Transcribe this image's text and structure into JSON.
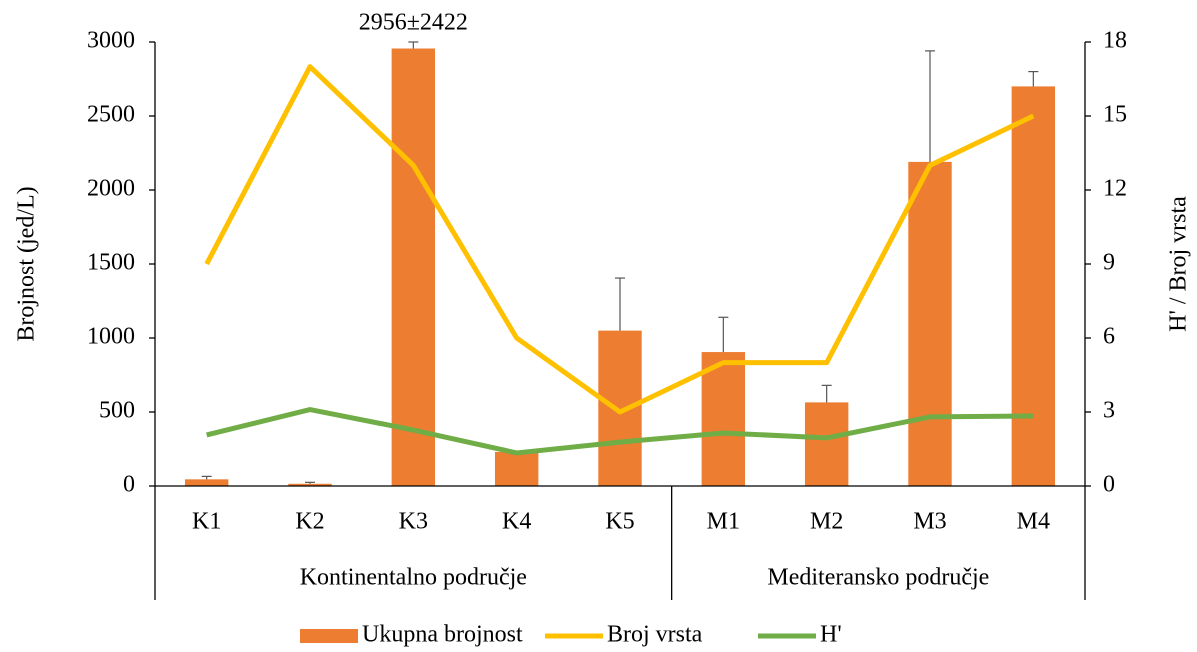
{
  "chart_data": {
    "type": "bar-line",
    "categories": [
      "K1",
      "K2",
      "K3",
      "K4",
      "K5",
      "M1",
      "M2",
      "M3",
      "M4"
    ],
    "groups": [
      {
        "name": "Kontinentalno područje",
        "count": 5
      },
      {
        "name": "Mediteransko područje",
        "count": 4
      }
    ],
    "series": [
      {
        "name": "Ukupna brojnost",
        "type": "bar",
        "color": "#ed7d31",
        "values": [
          45,
          15,
          2956,
          230,
          1050,
          905,
          565,
          2190,
          2700
        ],
        "errors": [
          20,
          10,
          2422,
          null,
          355,
          235,
          115,
          750,
          100
        ]
      },
      {
        "name": "Broj vrsta",
        "type": "line",
        "axis": "y2",
        "color": "#ffc000",
        "values": [
          9,
          17,
          13,
          6,
          3,
          5,
          5,
          13,
          15
        ]
      },
      {
        "name": "H'",
        "type": "line",
        "axis": "y2",
        "color": "#70ad47",
        "values": [
          2.07,
          3.1,
          2.27,
          1.34,
          1.78,
          2.15,
          1.95,
          2.8,
          2.84
        ]
      }
    ],
    "annotation": "2956±2422",
    "ylabel": "Brojnost (jed/L)",
    "y2label": "H' / Broj vrsta",
    "ylim": [
      0,
      3000
    ],
    "yticks": [
      0,
      500,
      1000,
      1500,
      2000,
      2500,
      3000
    ],
    "y2lim": [
      0,
      18
    ],
    "y2ticks": [
      0,
      3,
      6,
      9,
      12,
      15,
      18
    ],
    "legend": "bottom"
  }
}
